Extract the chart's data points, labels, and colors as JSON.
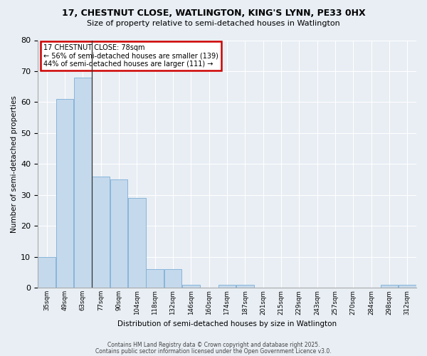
{
  "title1": "17, CHESTNUT CLOSE, WATLINGTON, KING'S LYNN, PE33 0HX",
  "title2": "Size of property relative to semi-detached houses in Watlington",
  "xlabel": "Distribution of semi-detached houses by size in Watlington",
  "ylabel": "Number of semi-detached properties",
  "categories": [
    "35sqm",
    "49sqm",
    "63sqm",
    "77sqm",
    "90sqm",
    "104sqm",
    "118sqm",
    "132sqm",
    "146sqm",
    "160sqm",
    "174sqm",
    "187sqm",
    "201sqm",
    "215sqm",
    "229sqm",
    "243sqm",
    "257sqm",
    "270sqm",
    "284sqm",
    "298sqm",
    "312sqm"
  ],
  "values": [
    10,
    61,
    68,
    36,
    35,
    29,
    6,
    6,
    1,
    0,
    1,
    1,
    0,
    0,
    0,
    0,
    0,
    0,
    0,
    1,
    1
  ],
  "bar_color": "#c5d9ec",
  "bar_edge_color": "#7aaed6",
  "annotation_title": "17 CHESTNUT CLOSE: 78sqm",
  "annotation_line1": "← 56% of semi-detached houses are smaller (139)",
  "annotation_line2": "44% of semi-detached houses are larger (111) →",
  "annotation_box_facecolor": "#ffffff",
  "annotation_box_edgecolor": "#cc0000",
  "footer1": "Contains HM Land Registry data © Crown copyright and database right 2025.",
  "footer2": "Contains public sector information licensed under the Open Government Licence v3.0.",
  "ylim": [
    0,
    80
  ],
  "fig_bg": "#e8eef4",
  "ax_bg": "#e8eef4",
  "grid_color": "#ffffff",
  "title1_fontsize": 9,
  "title2_fontsize": 8
}
